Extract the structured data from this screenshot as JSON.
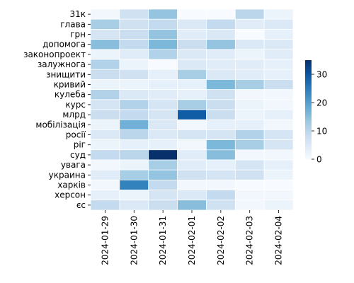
{
  "chart_data": {
    "type": "heatmap",
    "title": "",
    "xlabel": "",
    "ylabel": "",
    "columns": [
      "2024-01-29",
      "2024-01-30",
      "2024-01-31",
      "2024-02-01",
      "2024-02-02",
      "2024-02-03",
      "2024-02-04"
    ],
    "rows": [
      "31к",
      "глава",
      "грн",
      "допомога",
      "законопроект",
      "залужнога",
      "знищити",
      "кривий",
      "кулеба",
      "курс",
      "млрд",
      "мобілізація",
      "росії",
      "ріг",
      "суд",
      "увага",
      "украина",
      "харків",
      "херсон",
      "єс"
    ],
    "values": [
      [
        1,
        7,
        14,
        0,
        0,
        10,
        2
      ],
      [
        12,
        7,
        9,
        5,
        9,
        4,
        5
      ],
      [
        6,
        8,
        14,
        4,
        5,
        0,
        3
      ],
      [
        15,
        9,
        16,
        8,
        14,
        5,
        5
      ],
      [
        2,
        4,
        11,
        5,
        4,
        2,
        4
      ],
      [
        11,
        2,
        0,
        5,
        4,
        4,
        3
      ],
      [
        8,
        7,
        3,
        12,
        5,
        4,
        3
      ],
      [
        2,
        2,
        3,
        3,
        16,
        12,
        8
      ],
      [
        11,
        5,
        4,
        3,
        7,
        1,
        1
      ],
      [
        6,
        11,
        6,
        12,
        8,
        2,
        1
      ],
      [
        8,
        9,
        6,
        29,
        8,
        2,
        3
      ],
      [
        2,
        17,
        5,
        1,
        3,
        3,
        1
      ],
      [
        5,
        10,
        5,
        6,
        6,
        11,
        6
      ],
      [
        2,
        3,
        3,
        1,
        16,
        12,
        6
      ],
      [
        9,
        10,
        35,
        4,
        15,
        1,
        1
      ],
      [
        1,
        2,
        12,
        4,
        3,
        6,
        3
      ],
      [
        4,
        12,
        14,
        7,
        6,
        7,
        2
      ],
      [
        1,
        24,
        9,
        1,
        1,
        0,
        0
      ],
      [
        3,
        2,
        6,
        5,
        9,
        1,
        1
      ],
      [
        9,
        5,
        8,
        15,
        7,
        1,
        2
      ]
    ],
    "vmin": 0,
    "vmax": 35,
    "colorbar_ticks": [
      0,
      10,
      20,
      30
    ],
    "colormap": "Blues",
    "colors": {
      "low": "#f7fbff",
      "high": "#08306b",
      "cell_border": "#ffffff"
    }
  }
}
